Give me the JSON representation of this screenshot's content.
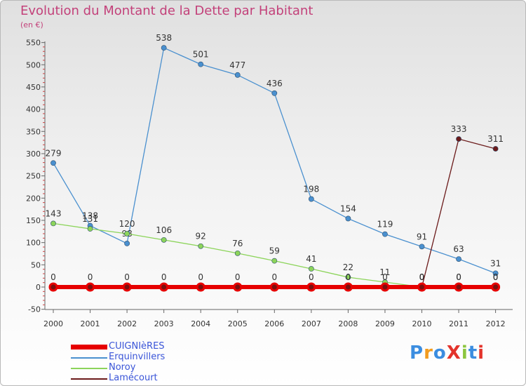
{
  "header": {
    "title": "Evolution du Montant de la Dette par Habitant",
    "subtitle": "(en €)"
  },
  "logo": {
    "text": "ProXiti",
    "colors": [
      "#3b8de0",
      "#f29b1d",
      "#3b8de0",
      "#e3332b",
      "#8cc63f",
      "#3b8de0",
      "#e3332b"
    ]
  },
  "chart_data": {
    "type": "line",
    "x": [
      "2000",
      "2001",
      "2002",
      "2003",
      "2004",
      "2005",
      "2006",
      "2007",
      "2008",
      "2009",
      "2010",
      "2011",
      "2012"
    ],
    "ylim": [
      -50,
      550
    ],
    "yticks": [
      -50,
      0,
      50,
      100,
      150,
      200,
      250,
      300,
      350,
      400,
      450,
      500,
      550
    ],
    "grid": false,
    "legend_position": "bottom-left",
    "series": [
      {
        "name": "CUIGNIèRES",
        "color": "#e60000",
        "values": [
          0,
          0,
          0,
          0,
          0,
          0,
          0,
          0,
          0,
          0,
          0,
          0,
          0
        ],
        "labels": [
          "0",
          "0",
          "0",
          "0",
          "0",
          "0",
          "0",
          "0",
          "0",
          "0",
          "0",
          "0",
          "0"
        ]
      },
      {
        "name": "Erquinvillers",
        "color": "#4a90cf",
        "values": [
          279,
          138,
          98,
          538,
          501,
          477,
          436,
          198,
          154,
          119,
          91,
          63,
          31
        ],
        "labels": [
          "279",
          "138",
          "98",
          "538",
          "501",
          "477",
          "436",
          "198",
          "154",
          "119",
          "91",
          "63",
          "31"
        ]
      },
      {
        "name": "Noroy",
        "color": "#8cd45a",
        "values": [
          143,
          131,
          120,
          106,
          92,
          76,
          59,
          41,
          22,
          11,
          0,
          0,
          0
        ],
        "labels": [
          "143",
          "131",
          "120",
          "106",
          "92",
          "76",
          "59",
          "41",
          "22",
          "11",
          "0",
          "0",
          "0"
        ]
      },
      {
        "name": "Lamécourt",
        "color": "#6b1a1a",
        "values": [
          null,
          null,
          null,
          null,
          null,
          null,
          null,
          null,
          null,
          null,
          0,
          333,
          311
        ],
        "labels": [
          "",
          "",
          "",
          "",
          "",
          "",
          "",
          "",
          "",
          "",
          "0",
          "333",
          "311"
        ]
      }
    ]
  }
}
